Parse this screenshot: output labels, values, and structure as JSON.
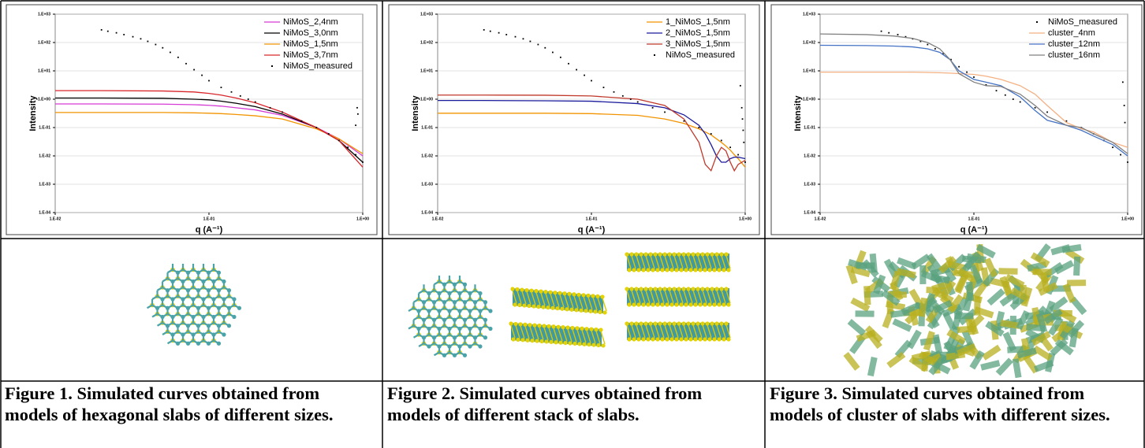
{
  "chart_data": [
    {
      "type": "line",
      "xlabel": "q (A⁻¹)",
      "ylabel": "Intensity",
      "xscale": "log",
      "yscale": "log",
      "legend": "upper right",
      "grid": true,
      "xlim": [
        0.01,
        1
      ],
      "ylim": [
        0.0001,
        1000
      ],
      "xticks": [
        {
          "value": 0.01,
          "label": "1.E-02"
        },
        {
          "value": 0.1,
          "label": "1.E-01"
        },
        {
          "value": 1,
          "label": "1.E+00"
        }
      ],
      "yticks": [
        {
          "value": 0.0001,
          "label": "1.E-04"
        },
        {
          "value": 0.001,
          "label": "1.E-03"
        },
        {
          "value": 0.01,
          "label": "1.E-02"
        },
        {
          "value": 0.1,
          "label": "1.E-01"
        },
        {
          "value": 1,
          "label": "1.E+00"
        },
        {
          "value": 10,
          "label": "1.E+01"
        },
        {
          "value": 100,
          "label": "1.E+02"
        },
        {
          "value": 1000,
          "label": "1.E+03"
        }
      ],
      "series": [
        {
          "name": "NiMoS_2,4nm",
          "color": "#d63bd6",
          "x": [
            0.01,
            0.02,
            0.05,
            0.08,
            0.1,
            0.12,
            0.15,
            0.2,
            0.3,
            0.5,
            0.7,
            1.0
          ],
          "values": [
            0.68,
            0.68,
            0.67,
            0.64,
            0.61,
            0.57,
            0.5,
            0.42,
            0.27,
            0.1,
            0.04,
            0.01
          ]
        },
        {
          "name": "NiMoS_3,0nm",
          "color": "#000000",
          "x": [
            0.01,
            0.02,
            0.05,
            0.08,
            0.1,
            0.12,
            0.15,
            0.2,
            0.3,
            0.5,
            0.7,
            1.0
          ],
          "values": [
            1.1,
            1.1,
            1.08,
            1.0,
            0.95,
            0.85,
            0.72,
            0.55,
            0.3,
            0.1,
            0.035,
            0.006
          ]
        },
        {
          "name": "NiMoS_1,5nm",
          "color": "#f29400",
          "x": [
            0.01,
            0.02,
            0.05,
            0.08,
            0.1,
            0.12,
            0.15,
            0.2,
            0.3,
            0.5,
            0.7,
            1.0
          ],
          "values": [
            0.34,
            0.34,
            0.34,
            0.33,
            0.32,
            0.31,
            0.29,
            0.26,
            0.2,
            0.09,
            0.04,
            0.012
          ]
        },
        {
          "name": "NiMoS_3,7nm",
          "color": "#d9262b",
          "x": [
            0.01,
            0.02,
            0.05,
            0.08,
            0.1,
            0.12,
            0.15,
            0.2,
            0.3,
            0.5,
            0.7,
            1.0
          ],
          "values": [
            2.0,
            2.0,
            1.95,
            1.8,
            1.6,
            1.4,
            1.1,
            0.75,
            0.35,
            0.1,
            0.035,
            0.004
          ]
        },
        {
          "name": "NiMoS_measured",
          "color": "#000000",
          "type": "scatter",
          "x": [
            0.02,
            0.022,
            0.025,
            0.028,
            0.032,
            0.036,
            0.04,
            0.045,
            0.05,
            0.056,
            0.063,
            0.071,
            0.08,
            0.09,
            0.1,
            0.12,
            0.14,
            0.16,
            0.18,
            0.2,
            0.25,
            0.3,
            0.4,
            0.5,
            0.6,
            0.7,
            0.8,
            0.9,
            1.0,
            0.9,
            0.92,
            0.93
          ],
          "values": [
            280,
            250,
            220,
            190,
            160,
            135,
            110,
            85,
            65,
            45,
            30,
            18,
            11,
            7,
            4.5,
            2.6,
            1.8,
            1.3,
            1.0,
            0.8,
            0.5,
            0.35,
            0.17,
            0.1,
            0.06,
            0.035,
            0.02,
            0.011,
            0.006,
            0.12,
            0.5,
            0.3
          ]
        }
      ]
    },
    {
      "type": "line",
      "xlabel": "q (A⁻¹)",
      "ylabel": "Intensity",
      "xscale": "log",
      "yscale": "log",
      "legend": "upper right",
      "grid": true,
      "xlim": [
        0.01,
        1
      ],
      "ylim": [
        0.0001,
        1000
      ],
      "xticks": [
        {
          "value": 0.01,
          "label": "1.E-02"
        },
        {
          "value": 0.1,
          "label": "1.E-01"
        },
        {
          "value": 1,
          "label": "1.E+00"
        }
      ],
      "yticks": [
        {
          "value": 0.0001,
          "label": "1.E-04"
        },
        {
          "value": 0.001,
          "label": "1.E-03"
        },
        {
          "value": 0.01,
          "label": "1.E-02"
        },
        {
          "value": 0.1,
          "label": "1.E-01"
        },
        {
          "value": 1,
          "label": "1.E+00"
        },
        {
          "value": 10,
          "label": "1.E+01"
        },
        {
          "value": 100,
          "label": "1.E+02"
        },
        {
          "value": 1000,
          "label": "1.E+03"
        }
      ],
      "series": [
        {
          "name": "1_NiMoS_1,5nm",
          "color": "#f29400",
          "x": [
            0.01,
            0.02,
            0.05,
            0.1,
            0.2,
            0.3,
            0.4,
            0.5,
            0.55,
            0.6,
            0.65,
            0.7,
            0.75,
            0.8,
            0.85,
            0.9,
            1.0
          ],
          "values": [
            0.32,
            0.32,
            0.32,
            0.31,
            0.27,
            0.2,
            0.14,
            0.09,
            0.07,
            0.055,
            0.04,
            0.03,
            0.022,
            0.016,
            0.011,
            0.008,
            0.004
          ]
        },
        {
          "name": "2_NiMoS_1,5nm",
          "color": "#1a1a9c",
          "x": [
            0.01,
            0.02,
            0.05,
            0.1,
            0.2,
            0.3,
            0.4,
            0.5,
            0.55,
            0.6,
            0.65,
            0.7,
            0.75,
            0.8,
            0.85,
            0.9,
            1.0
          ],
          "values": [
            0.9,
            0.9,
            0.88,
            0.85,
            0.7,
            0.5,
            0.28,
            0.12,
            0.06,
            0.025,
            0.01,
            0.006,
            0.006,
            0.008,
            0.009,
            0.009,
            0.008
          ]
        },
        {
          "name": "3_NiMoS_1,5nm",
          "color": "#c0392b",
          "x": [
            0.01,
            0.02,
            0.05,
            0.1,
            0.2,
            0.3,
            0.4,
            0.5,
            0.55,
            0.6,
            0.65,
            0.7,
            0.75,
            0.8,
            0.85,
            0.9,
            1.0
          ],
          "values": [
            1.4,
            1.4,
            1.38,
            1.3,
            1.0,
            0.6,
            0.2,
            0.03,
            0.005,
            0.003,
            0.01,
            0.02,
            0.015,
            0.006,
            0.003,
            0.005,
            0.007
          ]
        },
        {
          "name": "NiMoS_measured",
          "color": "#000000",
          "type": "scatter",
          "x": [
            0.02,
            0.022,
            0.025,
            0.028,
            0.032,
            0.036,
            0.04,
            0.045,
            0.05,
            0.056,
            0.063,
            0.071,
            0.08,
            0.09,
            0.1,
            0.12,
            0.14,
            0.16,
            0.18,
            0.2,
            0.25,
            0.3,
            0.4,
            0.5,
            0.6,
            0.7,
            0.8,
            0.9,
            1.0,
            0.93,
            0.95,
            0.96,
            0.97,
            0.98
          ],
          "values": [
            280,
            250,
            220,
            190,
            160,
            135,
            110,
            85,
            65,
            45,
            30,
            18,
            11,
            7,
            4.5,
            2.6,
            1.8,
            1.3,
            1.0,
            0.8,
            0.5,
            0.35,
            0.17,
            0.1,
            0.06,
            0.035,
            0.02,
            0.011,
            0.006,
            3,
            0.5,
            0.2,
            0.08,
            0.03
          ]
        }
      ]
    },
    {
      "type": "line",
      "xlabel": "q (A⁻¹)",
      "ylabel": "Intensity",
      "xscale": "log",
      "yscale": "log",
      "legend": "upper right",
      "grid": true,
      "xlim": [
        0.01,
        1
      ],
      "ylim": [
        0.0001,
        1000
      ],
      "xticks": [
        {
          "value": 0.01,
          "label": "1.E-02"
        },
        {
          "value": 0.1,
          "label": "1.E-01"
        },
        {
          "value": 1,
          "label": "1.E+00"
        }
      ],
      "yticks": [
        {
          "value": 0.0001,
          "label": "1.E-04"
        },
        {
          "value": 0.001,
          "label": "1.E-03"
        },
        {
          "value": 0.01,
          "label": "1.E-02"
        },
        {
          "value": 0.1,
          "label": "1.E-01"
        },
        {
          "value": 1,
          "label": "1.E+00"
        },
        {
          "value": 10,
          "label": "1.E+01"
        },
        {
          "value": 100,
          "label": "1.E+02"
        },
        {
          "value": 1000,
          "label": "1.E+03"
        }
      ],
      "series": [
        {
          "name": "NiMoS_measured",
          "color": "#000000",
          "type": "scatter",
          "x": [
            0.025,
            0.028,
            0.032,
            0.036,
            0.04,
            0.045,
            0.05,
            0.056,
            0.063,
            0.071,
            0.08,
            0.09,
            0.1,
            0.12,
            0.14,
            0.16,
            0.18,
            0.2,
            0.25,
            0.3,
            0.4,
            0.5,
            0.6,
            0.7,
            0.8,
            0.9,
            1.0,
            0.93,
            0.95,
            0.96
          ],
          "values": [
            250,
            220,
            190,
            160,
            135,
            110,
            85,
            60,
            40,
            25,
            14,
            9,
            6,
            3.2,
            2.0,
            1.4,
            1.0,
            0.8,
            0.5,
            0.35,
            0.17,
            0.1,
            0.06,
            0.035,
            0.02,
            0.011,
            0.006,
            4,
            0.6,
            0.15
          ]
        },
        {
          "name": "cluster_4nm",
          "color": "#f4b183",
          "x": [
            0.01,
            0.02,
            0.03,
            0.04,
            0.05,
            0.06,
            0.07,
            0.08,
            0.1,
            0.12,
            0.15,
            0.2,
            0.25,
            0.3,
            0.4,
            0.5,
            0.6,
            0.8,
            1.0
          ],
          "values": [
            9,
            9,
            9,
            9,
            8.8,
            8.6,
            8.3,
            8,
            7.5,
            6.5,
            5,
            3,
            1.5,
            0.6,
            0.15,
            0.09,
            0.07,
            0.03,
            0.02
          ]
        },
        {
          "name": "cluster_12nm",
          "color": "#4472c4",
          "x": [
            0.01,
            0.02,
            0.03,
            0.04,
            0.05,
            0.06,
            0.07,
            0.08,
            0.1,
            0.12,
            0.15,
            0.2,
            0.25,
            0.3,
            0.4,
            0.5,
            0.6,
            0.8,
            1.0
          ],
          "values": [
            80,
            78,
            75,
            70,
            60,
            45,
            25,
            10,
            5,
            4,
            3,
            1.2,
            0.4,
            0.18,
            0.12,
            0.08,
            0.05,
            0.025,
            0.01
          ]
        },
        {
          "name": "cluster_16nm",
          "color": "#808080",
          "x": [
            0.01,
            0.02,
            0.03,
            0.04,
            0.05,
            0.06,
            0.07,
            0.08,
            0.1,
            0.12,
            0.15,
            0.2,
            0.25,
            0.3,
            0.4,
            0.5,
            0.6,
            0.8,
            1.0
          ],
          "values": [
            200,
            190,
            170,
            140,
            100,
            60,
            25,
            8,
            4,
            3,
            2.8,
            1.5,
            0.6,
            0.25,
            0.12,
            0.1,
            0.06,
            0.03,
            0.012
          ]
        }
      ]
    }
  ],
  "captions": [
    "Figure 1. Simulated curves obtained from models of hexagonal slabs of different sizes.",
    "Figure 2. Simulated curves obtained from models of different stack of slabs.",
    "Figure 3. Simulated curves obtained from models of cluster of slabs with different sizes."
  ]
}
